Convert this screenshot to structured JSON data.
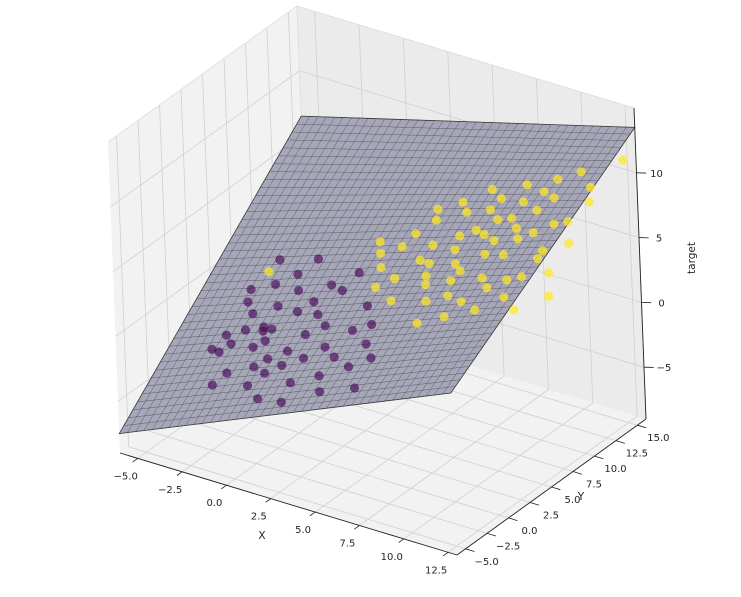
{
  "chart_data": {
    "type": "scatter",
    "projection": "3d",
    "xlabel": "X",
    "ylabel": "Y",
    "zlabel": "target",
    "x_ticks": [
      "−5.0",
      "−2.5",
      "0.0",
      "2.5",
      "5.0",
      "7.5",
      "10.0",
      "12.5"
    ],
    "y_ticks": [
      "−5.0",
      "−2.5",
      "0.0",
      "2.5",
      "5.0",
      "7.5",
      "10.0",
      "12.5",
      "15.0"
    ],
    "z_ticks": [
      "−5",
      "0",
      "5",
      "10"
    ],
    "xlim": [
      -6.0,
      13.0
    ],
    "ylim": [
      -6.0,
      16.0
    ],
    "zlim": [
      -9.0,
      15.0
    ],
    "grid": true,
    "colors": {
      "class0": "#440154",
      "class1": "#fde725",
      "plane": "#9a9ab0",
      "plane_edge": "#3a3a3a"
    },
    "plane": {
      "z_at_xmin_ymin": -7.5,
      "z_at_xmax_ymin": 3.5,
      "z_at_xmin_ymax": 6.5,
      "z_at_xmax_ymax": 13.5
    },
    "series": [
      {
        "class": 0,
        "points": [
          [
            -3.2,
            1.5,
            -3.0
          ],
          [
            -2.8,
            2.4,
            -2.2
          ],
          [
            -3.6,
            0.9,
            -3.5
          ],
          [
            -2.1,
            3.1,
            -2.0
          ],
          [
            -1.5,
            2.0,
            -2.3
          ],
          [
            -2.5,
            -0.5,
            -4.0
          ],
          [
            -1.0,
            1.2,
            -3.1
          ],
          [
            -0.5,
            3.8,
            -0.5
          ],
          [
            -1.8,
            4.2,
            -0.8
          ],
          [
            -2.9,
            3.5,
            -1.5
          ],
          [
            -0.2,
            1.9,
            -2.5
          ],
          [
            0.4,
            2.8,
            -1.4
          ],
          [
            -1.2,
            -0.8,
            -4.3
          ],
          [
            -3.8,
            2.2,
            -2.9
          ],
          [
            -4.1,
            1.1,
            -3.6
          ],
          [
            -0.7,
            0.2,
            -3.6
          ],
          [
            0.9,
            1.5,
            -2.4
          ],
          [
            1.3,
            3.3,
            -0.6
          ],
          [
            -2.3,
            5.0,
            0.3
          ],
          [
            -3.5,
            4.6,
            -0.4
          ],
          [
            -1.6,
            3.0,
            -1.9
          ],
          [
            0.1,
            4.5,
            0.2
          ],
          [
            1.8,
            2.2,
            -1.5
          ],
          [
            2.2,
            0.6,
            -2.8
          ],
          [
            1.0,
            -0.3,
            -3.4
          ],
          [
            -0.3,
            -1.5,
            -4.6
          ],
          [
            -2.0,
            1.6,
            -2.8
          ],
          [
            -3.0,
            -1.2,
            -4.8
          ],
          [
            0.6,
            3.9,
            -0.3
          ],
          [
            2.5,
            1.8,
            -1.8
          ],
          [
            3.0,
            3.0,
            -0.1
          ],
          [
            1.5,
            5.0,
            1.4
          ],
          [
            -1.3,
            5.6,
            1.2
          ],
          [
            -2.6,
            6.2,
            1.5
          ],
          [
            2.8,
            -0.6,
            -3.2
          ],
          [
            3.6,
            1.2,
            -1.8
          ],
          [
            3.2,
            4.4,
            1.2
          ],
          [
            0.0,
            0.8,
            -3.0
          ],
          [
            -1.9,
            2.6,
            -2.0
          ],
          [
            -0.9,
            4.8,
            0.5
          ],
          [
            4.0,
            2.5,
            -0.5
          ],
          [
            4.5,
            0.0,
            -2.5
          ],
          [
            2.0,
            6.0,
            2.5
          ],
          [
            -3.3,
            3.8,
            -0.9
          ],
          [
            1.2,
            -1.8,
            -4.1
          ],
          [
            -1.4,
            0.4,
            -3.5
          ],
          [
            0.7,
            5.4,
            1.3
          ],
          [
            3.8,
            3.6,
            0.4
          ],
          [
            4.6,
            1.8,
            -1.0
          ],
          [
            -0.6,
            6.6,
            2.2
          ]
        ]
      },
      {
        "class": 1,
        "points": [
          [
            -2.9,
            5.5,
            0.8
          ],
          [
            5.0,
            8.0,
            3.5
          ],
          [
            6.0,
            9.0,
            4.5
          ],
          [
            7.0,
            7.5,
            4.0
          ],
          [
            8.0,
            9.5,
            5.8
          ],
          [
            9.0,
            8.5,
            5.6
          ],
          [
            10.0,
            10.0,
            7.0
          ],
          [
            5.5,
            6.5,
            2.8
          ],
          [
            6.5,
            10.5,
            5.5
          ],
          [
            7.5,
            11.0,
            6.5
          ],
          [
            8.5,
            7.0,
            4.3
          ],
          [
            9.5,
            11.5,
            7.8
          ],
          [
            4.5,
            9.5,
            4.0
          ],
          [
            3.5,
            7.0,
            2.2
          ],
          [
            4.0,
            5.5,
            1.4
          ],
          [
            6.0,
            5.5,
            2.2
          ],
          [
            7.0,
            6.0,
            2.8
          ],
          [
            8.0,
            5.5,
            3.0
          ],
          [
            9.0,
            6.5,
            4.0
          ],
          [
            10.5,
            7.5,
            5.0
          ],
          [
            11.0,
            9.0,
            6.5
          ],
          [
            11.5,
            11.0,
            8.0
          ],
          [
            10.0,
            12.5,
            8.5
          ],
          [
            8.5,
            12.0,
            7.8
          ],
          [
            7.0,
            12.5,
            7.2
          ],
          [
            5.5,
            11.5,
            6.0
          ],
          [
            4.0,
            11.0,
            5.0
          ],
          [
            3.0,
            9.0,
            3.5
          ],
          [
            2.5,
            7.5,
            2.4
          ],
          [
            6.5,
            8.0,
            4.1
          ],
          [
            7.8,
            8.8,
            5.0
          ],
          [
            9.2,
            9.8,
            6.3
          ],
          [
            5.2,
            7.2,
            3.0
          ],
          [
            6.8,
            6.8,
            3.5
          ],
          [
            8.8,
            10.5,
            6.6
          ],
          [
            10.8,
            10.8,
            7.6
          ],
          [
            12.0,
            10.0,
            7.0
          ],
          [
            11.8,
            8.0,
            5.6
          ],
          [
            10.2,
            6.0,
            4.0
          ],
          [
            9.0,
            5.0,
            3.0
          ],
          [
            7.5,
            4.5,
            2.1
          ],
          [
            6.2,
            4.0,
            1.3
          ],
          [
            12.0,
            12.5,
            9.0
          ],
          [
            12.5,
            6.5,
            4.8
          ],
          [
            11.0,
            5.5,
            3.6
          ],
          [
            4.8,
            12.5,
            6.0
          ],
          [
            6.0,
            13.5,
            7.0
          ],
          [
            8.0,
            13.5,
            8.2
          ],
          [
            9.5,
            14.0,
            9.0
          ],
          [
            3.2,
            10.2,
            4.0
          ],
          [
            2.0,
            8.5,
            2.8
          ],
          [
            1.5,
            9.5,
            3.0
          ],
          [
            5.8,
            10.0,
            5.0
          ],
          [
            7.2,
            10.0,
            5.7
          ],
          [
            8.2,
            11.2,
            6.8
          ],
          [
            12.5,
            15.5,
            11.0
          ],
          [
            9.8,
            7.2,
            4.6
          ],
          [
            10.8,
            8.8,
            5.9
          ],
          [
            11.6,
            13.5,
            9.5
          ],
          [
            4.4,
            8.2,
            3.4
          ],
          [
            2.8,
            6.2,
            1.6
          ],
          [
            3.6,
            12.0,
            5.2
          ],
          [
            6.6,
            12.0,
            6.4
          ],
          [
            9.2,
            13.0,
            8.4
          ],
          [
            10.6,
            14.5,
            9.8
          ]
        ]
      }
    ]
  }
}
